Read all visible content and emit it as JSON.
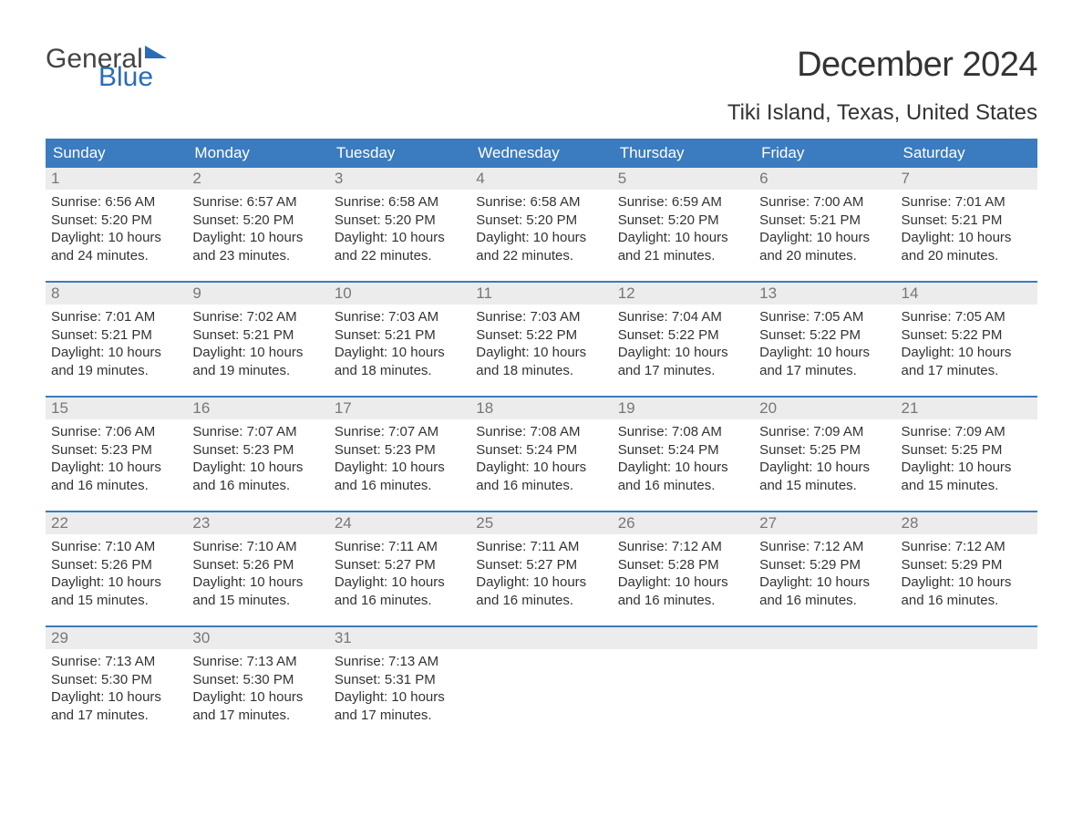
{
  "brand": {
    "word1": "General",
    "word2": "Blue"
  },
  "title": "December 2024",
  "location": "Tiki Island, Texas, United States",
  "colors": {
    "header_bg": "#3b7bbf",
    "header_text": "#ffffff",
    "daynum_bg": "#ececec",
    "daynum_text": "#777777",
    "body_text": "#333333",
    "brand_blue": "#2a6db6",
    "rule": "#3b7bbf",
    "page_bg": "#ffffff"
  },
  "fontsizes": {
    "month_title_pt": 29,
    "location_pt": 18,
    "dayhead_pt": 13,
    "daynum_pt": 13,
    "body_pt": 11,
    "logo_pt": 23
  },
  "day_headers": [
    "Sunday",
    "Monday",
    "Tuesday",
    "Wednesday",
    "Thursday",
    "Friday",
    "Saturday"
  ],
  "labels": {
    "sunrise": "Sunrise:",
    "sunset": "Sunset:",
    "daylight": "Daylight:"
  },
  "weeks": [
    [
      {
        "n": "1",
        "sr": "6:56 AM",
        "ss": "5:20 PM",
        "dl": "10 hours and 24 minutes."
      },
      {
        "n": "2",
        "sr": "6:57 AM",
        "ss": "5:20 PM",
        "dl": "10 hours and 23 minutes."
      },
      {
        "n": "3",
        "sr": "6:58 AM",
        "ss": "5:20 PM",
        "dl": "10 hours and 22 minutes."
      },
      {
        "n": "4",
        "sr": "6:58 AM",
        "ss": "5:20 PM",
        "dl": "10 hours and 22 minutes."
      },
      {
        "n": "5",
        "sr": "6:59 AM",
        "ss": "5:20 PM",
        "dl": "10 hours and 21 minutes."
      },
      {
        "n": "6",
        "sr": "7:00 AM",
        "ss": "5:21 PM",
        "dl": "10 hours and 20 minutes."
      },
      {
        "n": "7",
        "sr": "7:01 AM",
        "ss": "5:21 PM",
        "dl": "10 hours and 20 minutes."
      }
    ],
    [
      {
        "n": "8",
        "sr": "7:01 AM",
        "ss": "5:21 PM",
        "dl": "10 hours and 19 minutes."
      },
      {
        "n": "9",
        "sr": "7:02 AM",
        "ss": "5:21 PM",
        "dl": "10 hours and 19 minutes."
      },
      {
        "n": "10",
        "sr": "7:03 AM",
        "ss": "5:21 PM",
        "dl": "10 hours and 18 minutes."
      },
      {
        "n": "11",
        "sr": "7:03 AM",
        "ss": "5:22 PM",
        "dl": "10 hours and 18 minutes."
      },
      {
        "n": "12",
        "sr": "7:04 AM",
        "ss": "5:22 PM",
        "dl": "10 hours and 17 minutes."
      },
      {
        "n": "13",
        "sr": "7:05 AM",
        "ss": "5:22 PM",
        "dl": "10 hours and 17 minutes."
      },
      {
        "n": "14",
        "sr": "7:05 AM",
        "ss": "5:22 PM",
        "dl": "10 hours and 17 minutes."
      }
    ],
    [
      {
        "n": "15",
        "sr": "7:06 AM",
        "ss": "5:23 PM",
        "dl": "10 hours and 16 minutes."
      },
      {
        "n": "16",
        "sr": "7:07 AM",
        "ss": "5:23 PM",
        "dl": "10 hours and 16 minutes."
      },
      {
        "n": "17",
        "sr": "7:07 AM",
        "ss": "5:23 PM",
        "dl": "10 hours and 16 minutes."
      },
      {
        "n": "18",
        "sr": "7:08 AM",
        "ss": "5:24 PM",
        "dl": "10 hours and 16 minutes."
      },
      {
        "n": "19",
        "sr": "7:08 AM",
        "ss": "5:24 PM",
        "dl": "10 hours and 16 minutes."
      },
      {
        "n": "20",
        "sr": "7:09 AM",
        "ss": "5:25 PM",
        "dl": "10 hours and 15 minutes."
      },
      {
        "n": "21",
        "sr": "7:09 AM",
        "ss": "5:25 PM",
        "dl": "10 hours and 15 minutes."
      }
    ],
    [
      {
        "n": "22",
        "sr": "7:10 AM",
        "ss": "5:26 PM",
        "dl": "10 hours and 15 minutes."
      },
      {
        "n": "23",
        "sr": "7:10 AM",
        "ss": "5:26 PM",
        "dl": "10 hours and 15 minutes."
      },
      {
        "n": "24",
        "sr": "7:11 AM",
        "ss": "5:27 PM",
        "dl": "10 hours and 16 minutes."
      },
      {
        "n": "25",
        "sr": "7:11 AM",
        "ss": "5:27 PM",
        "dl": "10 hours and 16 minutes."
      },
      {
        "n": "26",
        "sr": "7:12 AM",
        "ss": "5:28 PM",
        "dl": "10 hours and 16 minutes."
      },
      {
        "n": "27",
        "sr": "7:12 AM",
        "ss": "5:29 PM",
        "dl": "10 hours and 16 minutes."
      },
      {
        "n": "28",
        "sr": "7:12 AM",
        "ss": "5:29 PM",
        "dl": "10 hours and 16 minutes."
      }
    ],
    [
      {
        "n": "29",
        "sr": "7:13 AM",
        "ss": "5:30 PM",
        "dl": "10 hours and 17 minutes."
      },
      {
        "n": "30",
        "sr": "7:13 AM",
        "ss": "5:30 PM",
        "dl": "10 hours and 17 minutes."
      },
      {
        "n": "31",
        "sr": "7:13 AM",
        "ss": "5:31 PM",
        "dl": "10 hours and 17 minutes."
      },
      {
        "empty": true
      },
      {
        "empty": true
      },
      {
        "empty": true
      },
      {
        "empty": true
      }
    ]
  ]
}
